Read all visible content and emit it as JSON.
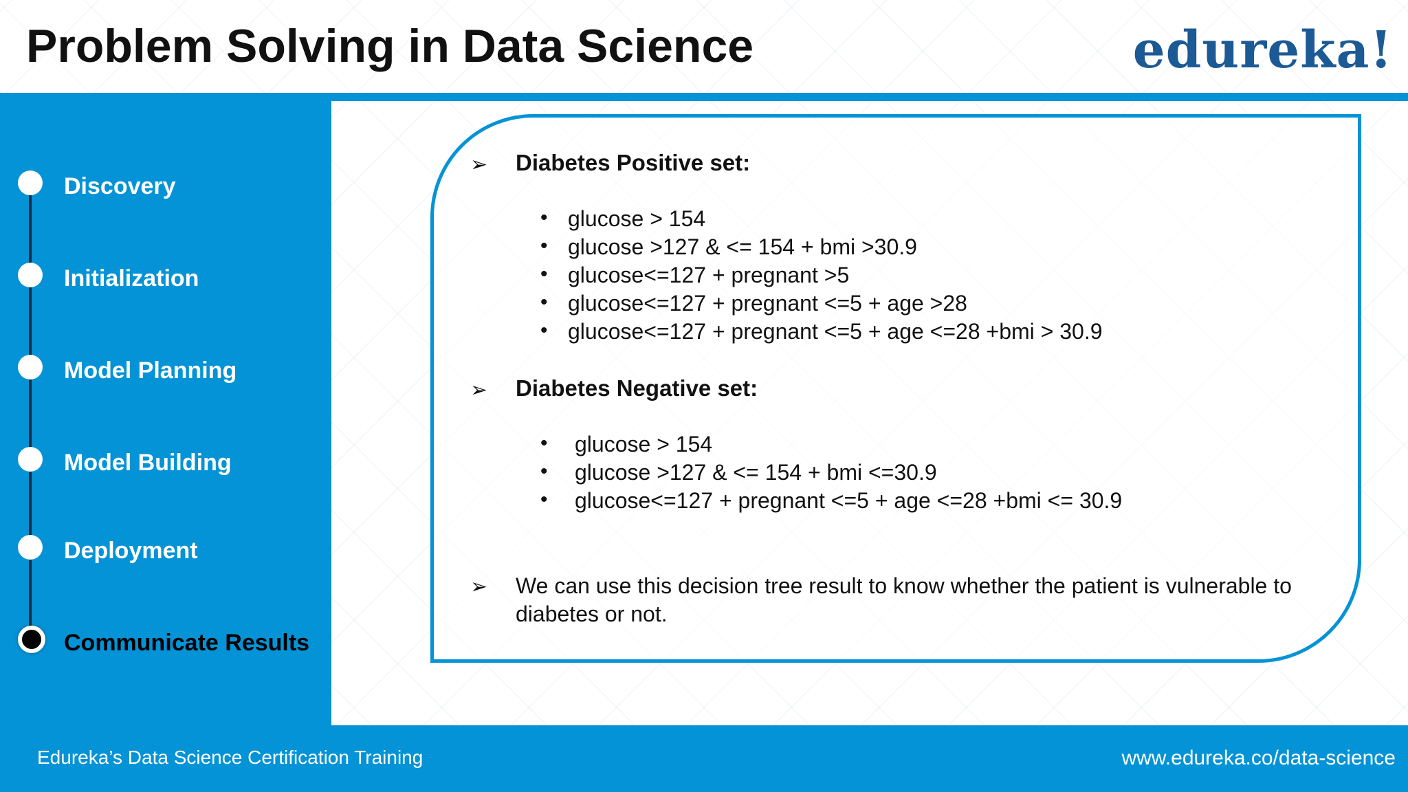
{
  "slide": {
    "title": "Problem Solving in Data Science",
    "logo": "edureka!"
  },
  "colors": {
    "accent": "#0393d6",
    "logo": "#1b5a94",
    "text": "#111111"
  },
  "sidebar": {
    "steps": [
      {
        "label": "Discovery",
        "active": false
      },
      {
        "label": "Initialization",
        "active": false
      },
      {
        "label": "Model Planning",
        "active": false
      },
      {
        "label": "Model Building",
        "active": false
      },
      {
        "label": "Deployment",
        "active": false
      },
      {
        "label": "Communicate Results",
        "active": true
      }
    ]
  },
  "content": {
    "arrow_glyph": "➢",
    "bullet_glyph": "•",
    "positive": {
      "heading": "Diabetes Positive set:",
      "items": [
        "glucose > 154",
        "glucose >127 & <= 154 + bmi >30.9",
        "glucose<=127 + pregnant >5",
        "glucose<=127 + pregnant <=5 + age >28",
        "glucose<=127 + pregnant <=5 + age <=28 +bmi > 30.9"
      ]
    },
    "negative": {
      "heading": "Diabetes Negative set:",
      "items": [
        "glucose > 154",
        "glucose >127 & <= 154 + bmi <=30.9",
        "glucose<=127 + pregnant <=5 + age <=28 +bmi <= 30.9"
      ]
    },
    "conclusion": "We can use this decision tree result to know whether the patient is vulnerable to diabetes or not."
  },
  "footer": {
    "left": "Edureka’s Data Science Certification Training",
    "right": "www.edureka.co/data-science"
  }
}
